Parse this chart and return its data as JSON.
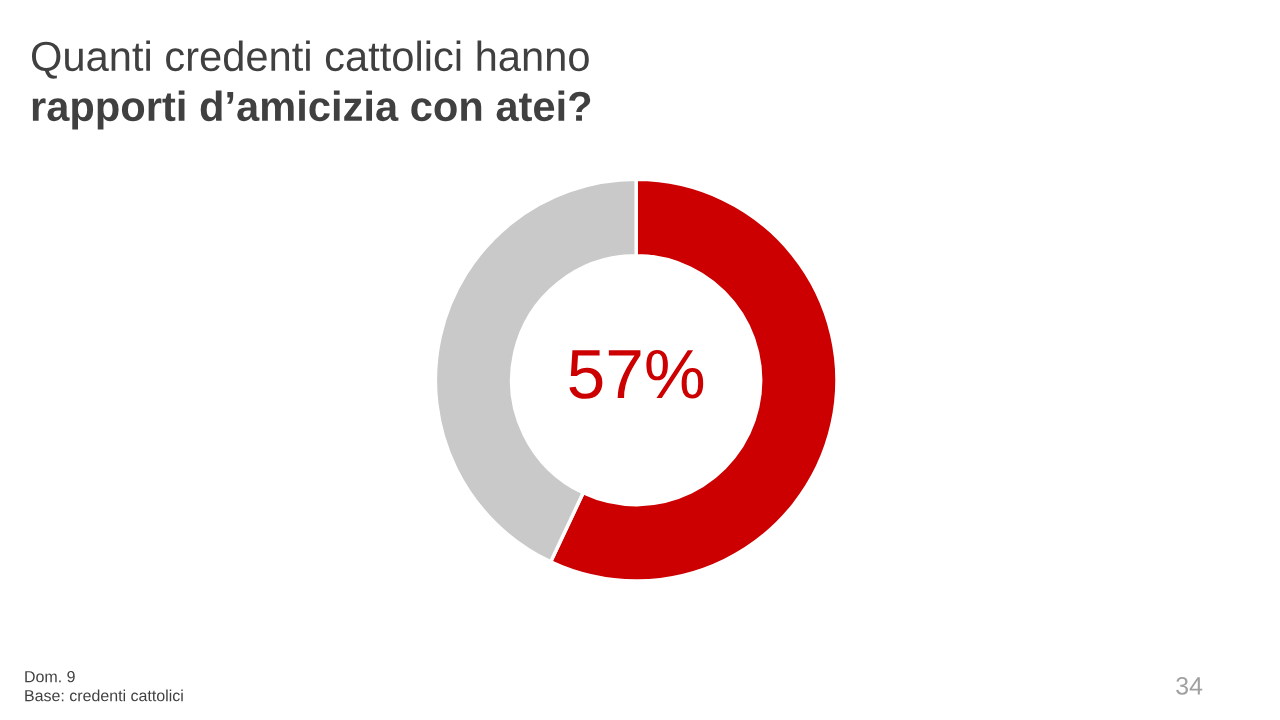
{
  "chart_data": {
    "type": "donut",
    "title": "Quanti credenti cattolici hanno",
    "subtitle": "rapporti d’amicizia con atei?",
    "categories": [
      null,
      null
    ],
    "values": [
      57,
      43
    ],
    "colors": [
      "#cc0000",
      "#c9c9c9"
    ],
    "value_labels": [
      "57%",
      null
    ],
    "legend": false,
    "annotations": [
      "Dom. 9",
      "Base: credenti cattolici",
      "34"
    ]
  }
}
